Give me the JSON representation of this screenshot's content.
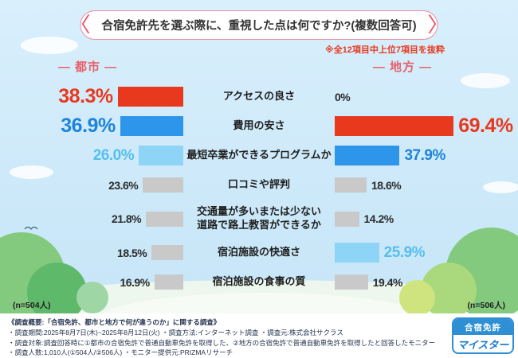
{
  "title": {
    "text": "合宿免許先を選ぶ際に、重視した点は何ですか?(複数回答可)",
    "bracket_left": "〈",
    "bracket_right": "〉"
  },
  "note": "※全12項目中上位7項目を抜粋",
  "columns": {
    "urban": "― 都市 ―",
    "rural": "― 地方 ―"
  },
  "sample_sizes": {
    "urban": "(n=504人)",
    "rural": "(n=506人)"
  },
  "colors": {
    "red": "#e8391f",
    "blue": "#2e96ea",
    "lightblue": "#8ed4f6",
    "gray": "#c9c9c9"
  },
  "chart_data": {
    "type": "bar",
    "orientation": "mirrored-horizontal",
    "unit": "%",
    "title": "合宿免許先を選ぶ際に、重視した点は何ですか?(複数回答可)",
    "legend_position": "top",
    "categories": [
      "アクセスの良さ",
      "費用の安さ",
      "最短卒業ができるプログラムか",
      "口コミや評判",
      "交通量が多いまたは少ない道路で路上教習ができるか",
      "宿泊施設の快適さ",
      "宿泊施設の食事の質"
    ],
    "series": [
      {
        "name": "都市",
        "values": [
          38.3,
          36.9,
          26.0,
          23.6,
          21.8,
          18.5,
          16.9
        ]
      },
      {
        "name": "地方",
        "values": [
          0,
          69.4,
          37.9,
          18.6,
          14.2,
          25.9,
          19.4
        ]
      }
    ],
    "rows": [
      {
        "label": [
          "アクセスの良さ"
        ],
        "urban": {
          "value": 38.3,
          "display": "38.3%",
          "color": "red",
          "size": "xl"
        },
        "rural": {
          "value": 0,
          "display": "0%",
          "color": "none",
          "size": "sm"
        }
      },
      {
        "label": [
          "費用の安さ"
        ],
        "urban": {
          "value": 36.9,
          "display": "36.9%",
          "color": "blue",
          "size": "xl"
        },
        "rural": {
          "value": 69.4,
          "display": "69.4%",
          "color": "red",
          "size": "xl"
        }
      },
      {
        "label": [
          "最短卒業ができるプログラムか"
        ],
        "urban": {
          "value": 26.0,
          "display": "26.0%",
          "color": "lightblue",
          "size": "lg"
        },
        "rural": {
          "value": 37.9,
          "display": "37.9%",
          "color": "blue",
          "size": "lg"
        }
      },
      {
        "label": [
          "口コミや評判"
        ],
        "urban": {
          "value": 23.6,
          "display": "23.6%",
          "color": "gray",
          "size": "sm"
        },
        "rural": {
          "value": 18.6,
          "display": "18.6%",
          "color": "gray",
          "size": "sm"
        }
      },
      {
        "label": [
          "交通量が多いまたは少ない",
          "道路で路上教習ができるか"
        ],
        "urban": {
          "value": 21.8,
          "display": "21.8%",
          "color": "gray",
          "size": "sm"
        },
        "rural": {
          "value": 14.2,
          "display": "14.2%",
          "color": "gray",
          "size": "sm"
        }
      },
      {
        "label": [
          "宿泊施設の快適さ"
        ],
        "urban": {
          "value": 18.5,
          "display": "18.5%",
          "color": "gray",
          "size": "sm"
        },
        "rural": {
          "value": 25.9,
          "display": "25.9%",
          "color": "lightblue",
          "size": "lg"
        }
      },
      {
        "label": [
          "宿泊施設の食事の質"
        ],
        "urban": {
          "value": 16.9,
          "display": "16.9%",
          "color": "gray",
          "size": "sm"
        },
        "rural": {
          "value": 19.4,
          "display": "19.4%",
          "color": "gray",
          "size": "sm"
        }
      }
    ]
  },
  "footer": {
    "lines": [
      "《調査概要:「合宿免許、都市と地方で何が違うのか」に関する調査》",
      "・調査期間:2025年8月7日(木)~2025年8月12日(火)  ・調査方法:インターネット調査  ・調査元:株式会社サクラス",
      "・調査対象:調査回答時に①都市の合宿免許で普通自動車免許を取得した、②地方の合宿免許で普通自動車免許を取得したと回答したモニター",
      "・調査人数:1,010人(①504人/②506人)  ・モニター提供元:PRIZMAリサーチ"
    ]
  },
  "logo": {
    "top": "合宿免許",
    "bottom": "マイスター"
  }
}
